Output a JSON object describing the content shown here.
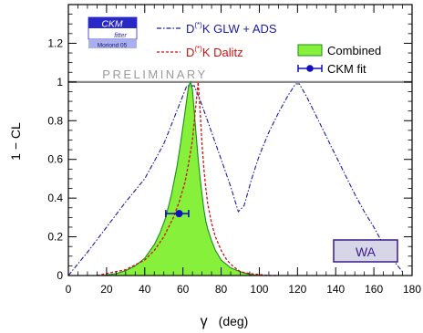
{
  "logo": {
    "main": "CKM",
    "sub": "fitter",
    "note": "Moriond 05"
  },
  "watermark": "PRELIMINARY",
  "badge": "WA",
  "axes": {
    "xlabel_symbol": "γ",
    "xlabel_unit": "(deg)",
    "ylabel": "1 − CL"
  },
  "colors": {
    "glw": "#1a1aa8",
    "dalitz": "#d01010",
    "combined_fill": "#86f03a",
    "combined_edge": "#1e8c1e",
    "fit": "#1010c0",
    "badge_fill": "#d6d6e6",
    "badge_edge": "#3a1a8c",
    "logo_fill": "#2828c8"
  },
  "chart_data": {
    "type": "line",
    "title": "",
    "xlabel": "γ (deg)",
    "ylabel": "1 − CL",
    "xlim": [
      0,
      180
    ],
    "ylim": [
      0,
      1.4
    ],
    "xticks": [
      0,
      20,
      40,
      60,
      80,
      100,
      120,
      140,
      160,
      180
    ],
    "yticks": [
      0,
      0.2,
      0.4,
      0.6,
      0.8,
      1,
      1.2
    ],
    "ytick_labels": [
      "0",
      "0.2",
      "0.4",
      "0.6",
      "0.8",
      "1",
      "1.2"
    ],
    "legend": [
      {
        "key": "glw",
        "label_pre": "D",
        "label_sup": "(*)",
        "label_post": "K GLW + ADS"
      },
      {
        "key": "dalitz",
        "label_pre": "D",
        "label_sup": "(*)",
        "label_post": "K Dalitz"
      },
      {
        "key": "combined",
        "label": "Combined"
      },
      {
        "key": "fit",
        "label": "CKM fit"
      }
    ],
    "series": [
      {
        "key": "glw",
        "style": "dash-dot",
        "x": [
          0,
          10,
          20,
          30,
          40,
          50,
          58,
          62,
          66,
          70,
          75,
          80,
          85,
          89,
          92,
          96,
          100,
          105,
          110,
          115,
          119,
          121,
          125,
          130,
          135,
          140,
          145,
          150,
          155,
          160,
          165,
          170,
          175
        ],
        "y": [
          0.0,
          0.12,
          0.25,
          0.38,
          0.5,
          0.68,
          0.88,
          0.98,
          0.98,
          0.88,
          0.74,
          0.6,
          0.46,
          0.33,
          0.36,
          0.5,
          0.62,
          0.74,
          0.84,
          0.93,
          0.99,
          0.99,
          0.92,
          0.82,
          0.72,
          0.62,
          0.52,
          0.42,
          0.33,
          0.25,
          0.16,
          0.08,
          0.02
        ]
      },
      {
        "key": "dalitz",
        "style": "dashed",
        "x": [
          15,
          20,
          30,
          40,
          45,
          50,
          55,
          58,
          61,
          63,
          65,
          66,
          67,
          68,
          69,
          70,
          71,
          72,
          73,
          75,
          77,
          80,
          83,
          86,
          90,
          95,
          100,
          105,
          110
        ],
        "y": [
          0.0,
          0.01,
          0.03,
          0.08,
          0.13,
          0.2,
          0.3,
          0.38,
          0.48,
          0.58,
          0.7,
          0.8,
          0.9,
          1.0,
          0.85,
          0.68,
          0.55,
          0.45,
          0.37,
          0.27,
          0.2,
          0.13,
          0.08,
          0.05,
          0.02,
          0.01,
          0.005,
          0.0,
          0.0
        ]
      },
      {
        "key": "combined",
        "style": "filled",
        "x": [
          18,
          25,
          30,
          35,
          40,
          45,
          48,
          51,
          54,
          57,
          59,
          61,
          63,
          64,
          65,
          66,
          67,
          68,
          69,
          70,
          71,
          72,
          73,
          75,
          77,
          80,
          85,
          90,
          95,
          100
        ],
        "y": [
          0.0,
          0.01,
          0.025,
          0.05,
          0.09,
          0.16,
          0.22,
          0.3,
          0.42,
          0.57,
          0.7,
          0.84,
          0.98,
          1.0,
          0.96,
          0.84,
          0.72,
          0.6,
          0.5,
          0.42,
          0.34,
          0.28,
          0.24,
          0.18,
          0.13,
          0.08,
          0.04,
          0.02,
          0.005,
          0.0
        ]
      }
    ],
    "fit_point": {
      "x": 58,
      "y": 0.32,
      "xerr_low": 7,
      "xerr_high": 5
    },
    "reference_line_y": 1.0,
    "grid": false
  }
}
